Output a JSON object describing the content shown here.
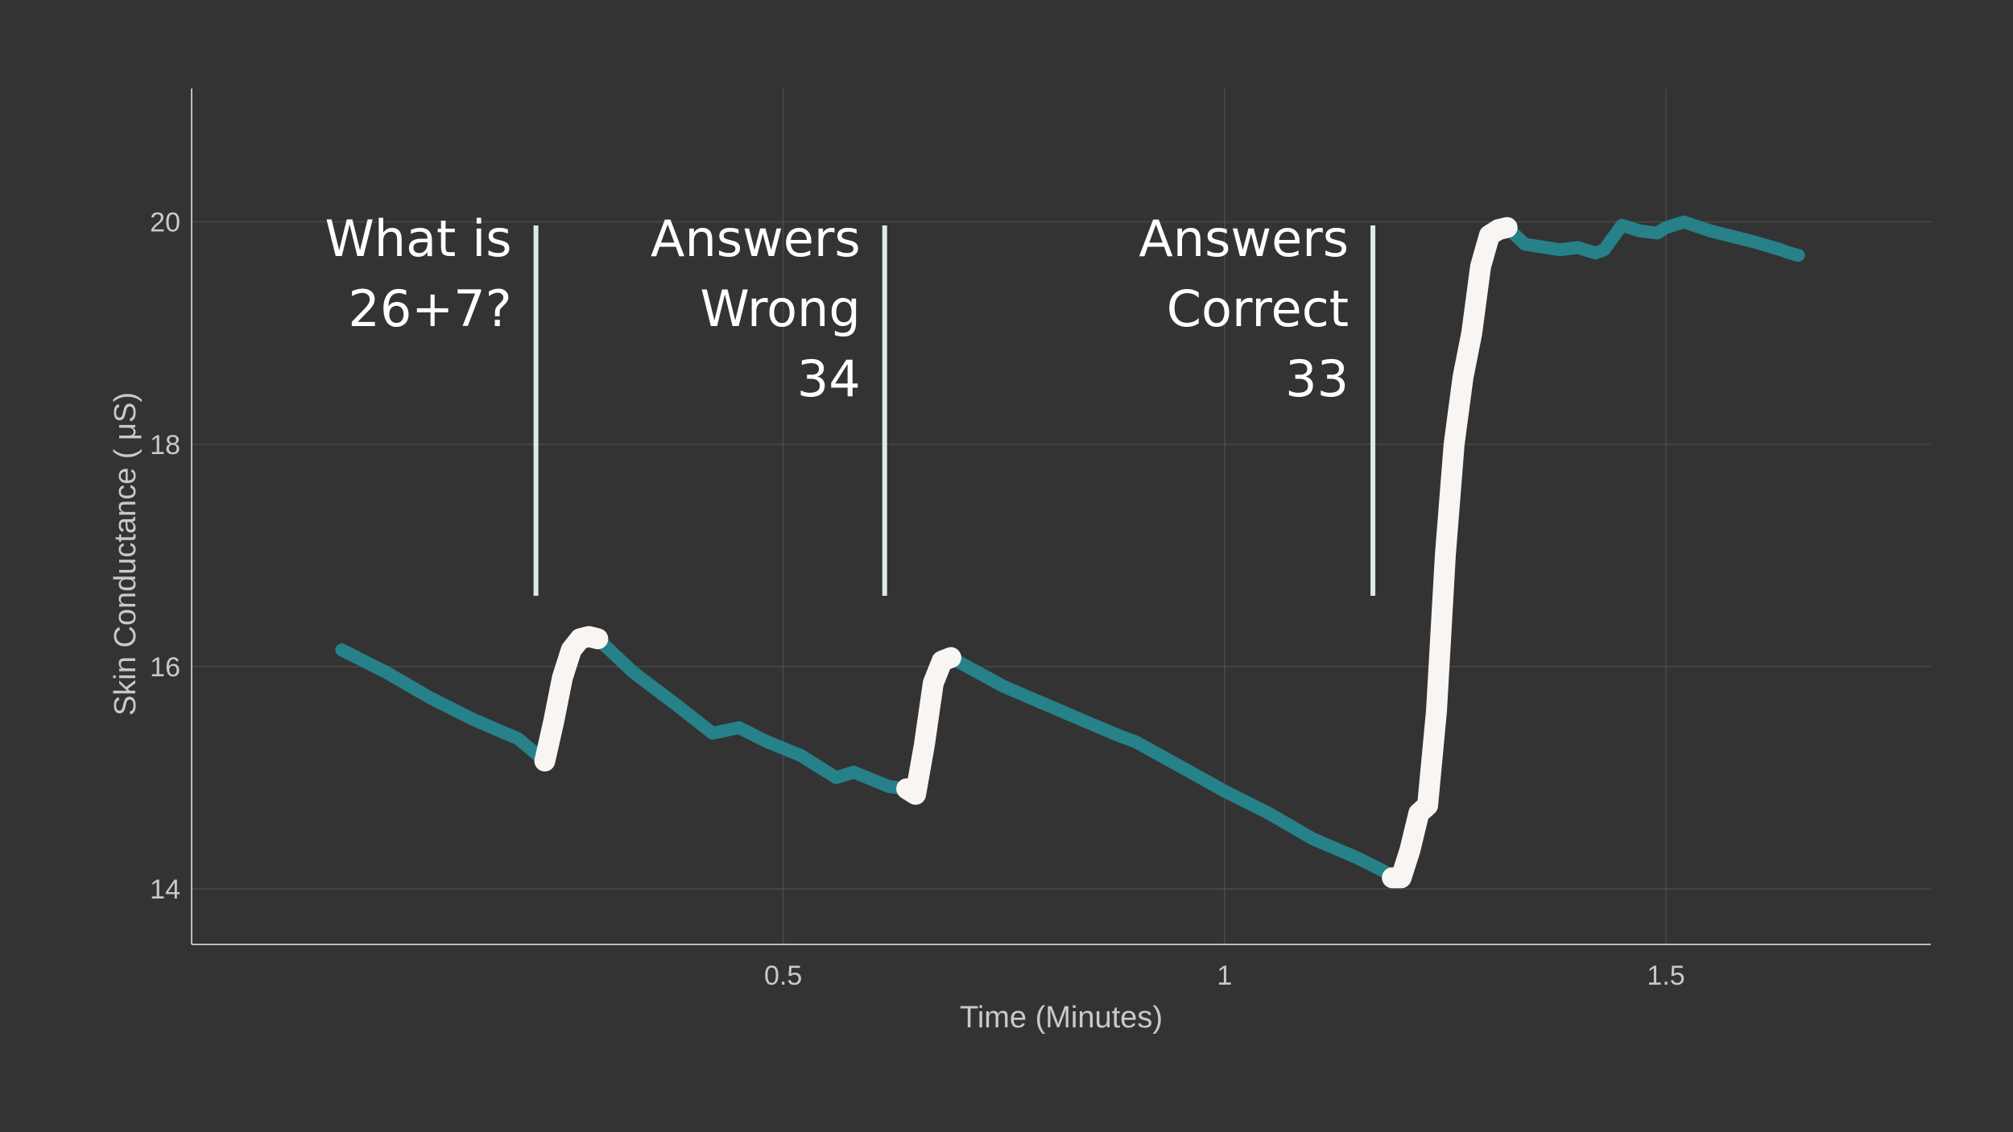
{
  "chart_data": {
    "type": "line",
    "title": "",
    "xlabel": "Time (Minutes)",
    "ylabel": "Skin Conductance ( μS)",
    "xlim": [
      -0.17,
      1.8
    ],
    "ylim": [
      13.5,
      21.2
    ],
    "x_ticks": [
      {
        "value": 0.5,
        "label": "0.5"
      },
      {
        "value": 1,
        "label": "1"
      },
      {
        "value": 1.5,
        "label": "1.5"
      }
    ],
    "y_ticks": [
      {
        "value": 14,
        "label": "14"
      },
      {
        "value": 16,
        "label": "16"
      },
      {
        "value": 18,
        "label": "18"
      },
      {
        "value": 20,
        "label": "20"
      }
    ],
    "grid": true,
    "legend": "none",
    "colors": {
      "baseline": "#268189",
      "response": "#f8f5f3",
      "annotation_line": "#d9ece3"
    },
    "series": [
      {
        "role": "baseline",
        "x": [
          0.0,
          0.05,
          0.1,
          0.15,
          0.2,
          0.23
        ],
        "y": [
          16.15,
          15.95,
          15.72,
          15.52,
          15.35,
          15.15
        ]
      },
      {
        "role": "response",
        "x": [
          0.23,
          0.24,
          0.25,
          0.26,
          0.27,
          0.28,
          0.29
        ],
        "y": [
          15.15,
          15.5,
          15.9,
          16.15,
          16.25,
          16.27,
          16.25
        ]
      },
      {
        "role": "baseline",
        "x": [
          0.29,
          0.33,
          0.38,
          0.42,
          0.45,
          0.48,
          0.52,
          0.56,
          0.58,
          0.62,
          0.64
        ],
        "y": [
          16.25,
          15.95,
          15.65,
          15.4,
          15.45,
          15.33,
          15.2,
          15.0,
          15.05,
          14.92,
          14.9
        ]
      },
      {
        "role": "response",
        "x": [
          0.64,
          0.65,
          0.66,
          0.67,
          0.68,
          0.69
        ],
        "y": [
          14.9,
          14.85,
          15.3,
          15.85,
          16.05,
          16.08
        ]
      },
      {
        "role": "baseline",
        "x": [
          0.69,
          0.75,
          0.8,
          0.85,
          0.88,
          0.9,
          0.95,
          1.0,
          1.05,
          1.1,
          1.15,
          1.19
        ],
        "y": [
          16.08,
          15.82,
          15.65,
          15.48,
          15.38,
          15.32,
          15.1,
          14.88,
          14.68,
          14.45,
          14.28,
          14.12
        ]
      },
      {
        "role": "response",
        "x": [
          1.19,
          1.2,
          1.21,
          1.22,
          1.23,
          1.24,
          1.25,
          1.26,
          1.27,
          1.28,
          1.29,
          1.3,
          1.31,
          1.32
        ],
        "y": [
          14.1,
          14.1,
          14.35,
          14.68,
          14.75,
          15.6,
          17.0,
          18.0,
          18.6,
          19.0,
          19.6,
          19.88,
          19.93,
          19.95
        ]
      },
      {
        "role": "baseline",
        "x": [
          1.32,
          1.34,
          1.38,
          1.4,
          1.42,
          1.43,
          1.45,
          1.47,
          1.49,
          1.5,
          1.52,
          1.55,
          1.6,
          1.63,
          1.64,
          1.65
        ],
        "y": [
          19.95,
          19.8,
          19.75,
          19.77,
          19.72,
          19.75,
          19.97,
          19.92,
          19.9,
          19.95,
          20.0,
          19.92,
          19.82,
          19.75,
          19.72,
          19.7
        ]
      }
    ],
    "annotations": [
      {
        "x": 0.22,
        "lines": [
          "What is",
          "26+7?"
        ]
      },
      {
        "x": 0.615,
        "lines": [
          "Answers",
          "Wrong",
          "34"
        ]
      },
      {
        "x": 1.168,
        "lines": [
          "Answers",
          "Correct",
          "33"
        ]
      }
    ]
  }
}
